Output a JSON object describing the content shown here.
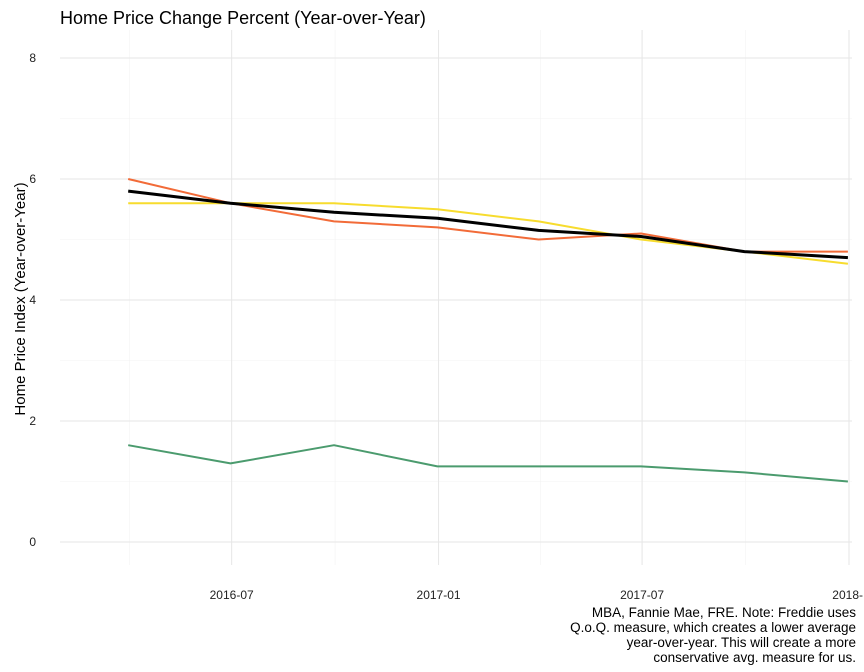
{
  "chart_data": {
    "type": "line",
    "title": "Home Price Change Percent (Year-over-Year)",
    "xlabel": "",
    "ylabel": "Home Price Index (Year-over-Year)",
    "ylim": [
      0,
      8
    ],
    "y_ticks": [
      "0",
      "2",
      "4",
      "6",
      "8"
    ],
    "x_ticks": [
      {
        "date": "2016-07-01",
        "label": "2016-07"
      },
      {
        "date": "2017-01-01",
        "label": "2017-01"
      },
      {
        "date": "2017-07-01",
        "label": "2017-07"
      },
      {
        "date": "2018-01-01",
        "label": "2018-"
      }
    ],
    "xlim": [
      "2016-01-01",
      "2018-01-01"
    ],
    "grid": true,
    "legend": "none",
    "caption": [
      "MBA, Fannie Mae, FRE. Note: Freddie uses",
      "Q.o.Q. measure, which creates a lower average",
      "year-over-year. This will create a more",
      "conservative avg. measure for us."
    ],
    "series": [
      {
        "color": "#f26b38",
        "width": 2,
        "points": [
          [
            "2016-03-31",
            6.0
          ],
          [
            "2016-06-30",
            5.6
          ],
          [
            "2016-09-30",
            5.3
          ],
          [
            "2016-12-31",
            5.2
          ],
          [
            "2017-03-31",
            5.0
          ],
          [
            "2017-06-30",
            5.1
          ],
          [
            "2017-09-30",
            4.8
          ],
          [
            "2017-12-31",
            4.8
          ]
        ]
      },
      {
        "color": "#f7dc2e",
        "width": 2,
        "points": [
          [
            "2016-03-31",
            5.6
          ],
          [
            "2016-06-30",
            5.6
          ],
          [
            "2016-09-30",
            5.6
          ],
          [
            "2016-12-31",
            5.5
          ],
          [
            "2017-03-31",
            5.3
          ],
          [
            "2017-06-30",
            5.0
          ],
          [
            "2017-09-30",
            4.8
          ],
          [
            "2017-12-31",
            4.6
          ]
        ]
      },
      {
        "color": "#4b9b6e",
        "width": 2,
        "points": [
          [
            "2016-03-31",
            1.6
          ],
          [
            "2016-06-30",
            1.3
          ],
          [
            "2016-09-30",
            1.6
          ],
          [
            "2016-12-31",
            1.25
          ],
          [
            "2017-03-31",
            1.25
          ],
          [
            "2017-06-30",
            1.25
          ],
          [
            "2017-09-30",
            1.15
          ],
          [
            "2017-12-31",
            1.0
          ]
        ]
      },
      {
        "color": "#000000",
        "width": 3,
        "points": [
          [
            "2016-03-31",
            5.8
          ],
          [
            "2016-06-30",
            5.6
          ],
          [
            "2016-09-30",
            5.45
          ],
          [
            "2016-12-31",
            5.35
          ],
          [
            "2017-03-31",
            5.15
          ],
          [
            "2017-06-30",
            5.05
          ],
          [
            "2017-09-30",
            4.8
          ],
          [
            "2017-12-31",
            4.7
          ]
        ]
      }
    ]
  }
}
